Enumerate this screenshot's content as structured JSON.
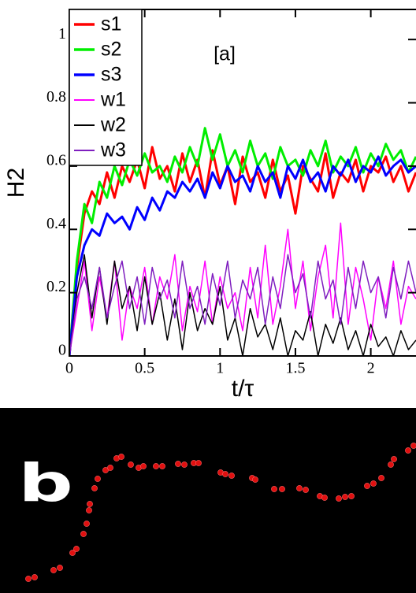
{
  "chart_data": {
    "type": "line",
    "annotation": "[a]",
    "x_label": "t/τ",
    "y_label": "H2",
    "x": [
      0,
      0.05,
      0.1,
      0.15,
      0.2,
      0.25,
      0.3,
      0.35,
      0.4,
      0.45,
      0.5,
      0.55,
      0.6,
      0.65,
      0.7,
      0.75,
      0.8,
      0.85,
      0.9,
      0.95,
      1,
      1.05,
      1.1,
      1.15,
      1.2,
      1.25,
      1.3,
      1.35,
      1.4,
      1.45,
      1.5,
      1.55,
      1.6,
      1.65,
      1.7,
      1.75,
      1.8,
      1.85,
      1.9,
      1.95,
      2,
      2.05,
      2.1,
      2.15,
      2.2,
      2.25,
      2.3
    ],
    "series": [
      {
        "name": "s1",
        "color": "#ff0000",
        "width": 3,
        "values": [
          0,
          0.28,
          0.45,
          0.52,
          0.48,
          0.58,
          0.5,
          0.6,
          0.55,
          0.62,
          0.53,
          0.66,
          0.56,
          0.6,
          0.52,
          0.64,
          0.55,
          0.62,
          0.5,
          0.65,
          0.54,
          0.6,
          0.48,
          0.63,
          0.55,
          0.58,
          0.5,
          0.62,
          0.52,
          0.57,
          0.45,
          0.6,
          0.56,
          0.52,
          0.64,
          0.5,
          0.58,
          0.55,
          0.62,
          0.52,
          0.6,
          0.58,
          0.63,
          0.55,
          0.6,
          0.52,
          0.58
        ]
      },
      {
        "name": "s2",
        "color": "#00ee00",
        "width": 3,
        "values": [
          0,
          0.3,
          0.48,
          0.42,
          0.55,
          0.5,
          0.6,
          0.54,
          0.62,
          0.57,
          0.64,
          0.58,
          0.6,
          0.55,
          0.63,
          0.58,
          0.66,
          0.6,
          0.72,
          0.62,
          0.7,
          0.6,
          0.65,
          0.58,
          0.68,
          0.6,
          0.64,
          0.56,
          0.66,
          0.6,
          0.62,
          0.57,
          0.65,
          0.6,
          0.68,
          0.58,
          0.63,
          0.6,
          0.66,
          0.58,
          0.64,
          0.6,
          0.67,
          0.62,
          0.65,
          0.58,
          0.63
        ]
      },
      {
        "name": "s3",
        "color": "#0000ff",
        "width": 3,
        "values": [
          0,
          0.25,
          0.35,
          0.4,
          0.38,
          0.45,
          0.42,
          0.44,
          0.4,
          0.47,
          0.43,
          0.5,
          0.46,
          0.52,
          0.5,
          0.55,
          0.52,
          0.56,
          0.5,
          0.58,
          0.53,
          0.6,
          0.55,
          0.57,
          0.52,
          0.6,
          0.55,
          0.58,
          0.5,
          0.6,
          0.56,
          0.62,
          0.55,
          0.58,
          0.52,
          0.6,
          0.57,
          0.62,
          0.55,
          0.6,
          0.58,
          0.63,
          0.57,
          0.6,
          0.62,
          0.58,
          0.6
        ]
      },
      {
        "name": "w1",
        "color": "#ff00ff",
        "width": 1.5,
        "values": [
          0,
          0.15,
          0.3,
          0.08,
          0.25,
          0.12,
          0.3,
          0.05,
          0.22,
          0.15,
          0.28,
          0.1,
          0.25,
          0.18,
          0.32,
          0.08,
          0.22,
          0.14,
          0.3,
          0.1,
          0.25,
          0.15,
          0.2,
          0.08,
          0.28,
          0.12,
          0.35,
          0.1,
          0.22,
          0.4,
          0.15,
          0.3,
          0.08,
          0.25,
          0.35,
          0.12,
          0.42,
          0.1,
          0.28,
          0.18,
          0.05,
          0.25,
          0.15,
          0.3,
          0.1,
          0.22,
          0.18
        ]
      },
      {
        "name": "w2",
        "color": "#000000",
        "width": 1.5,
        "values": [
          0,
          0.2,
          0.32,
          0.12,
          0.28,
          0.1,
          0.3,
          0.15,
          0.22,
          0.08,
          0.25,
          0.1,
          0.2,
          0.05,
          0.18,
          0.02,
          0.2,
          0.08,
          0.15,
          0.1,
          0.22,
          0.05,
          0.12,
          0,
          0.15,
          0.06,
          0.1,
          0.02,
          0.12,
          0,
          0.08,
          0.05,
          0.14,
          0,
          0.1,
          0.04,
          0.12,
          0.02,
          0.08,
          0,
          0.1,
          0.03,
          0.06,
          0,
          0.08,
          0.02,
          0.05
        ]
      },
      {
        "name": "w3",
        "color": "#7f1fbf",
        "width": 1.5,
        "values": [
          0,
          0.18,
          0.25,
          0.15,
          0.28,
          0.12,
          0.22,
          0.3,
          0.15,
          0.25,
          0.1,
          0.28,
          0.18,
          0.24,
          0.12,
          0.3,
          0.15,
          0.22,
          0.1,
          0.26,
          0.16,
          0.3,
          0.12,
          0.24,
          0.18,
          0.28,
          0.1,
          0.25,
          0.15,
          0.32,
          0.2,
          0.26,
          0.12,
          0.3,
          0.18,
          0.24,
          0.1,
          0.28,
          0.15,
          0.3,
          0.2,
          0.25,
          0.12,
          0.28,
          0.18,
          0.3,
          0.2
        ]
      }
    ],
    "xlim": [
      0,
      2.3
    ],
    "ylim": [
      0,
      1.095
    ],
    "xticks": [
      0,
      0.5,
      1,
      1.5,
      2
    ],
    "yticks": [
      0,
      0.2,
      0.4,
      0.6,
      0.8,
      1
    ],
    "legend": "upper left"
  },
  "panel_b": {
    "label": "b"
  }
}
